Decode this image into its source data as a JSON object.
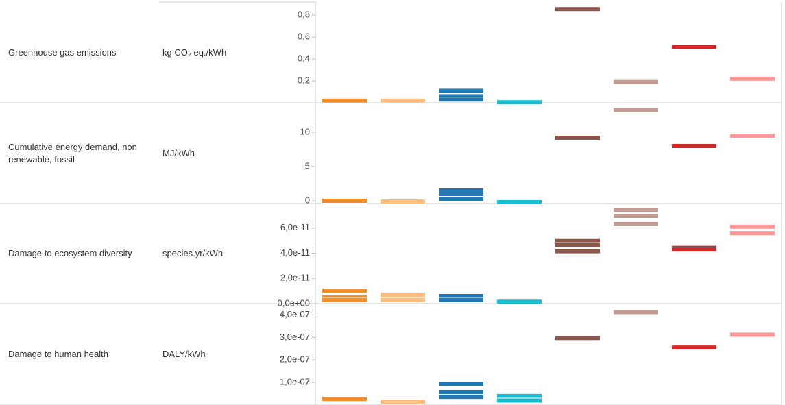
{
  "chart_data": [
    {
      "type": "strip",
      "label": "Greenhouse gas emissions",
      "unit": "kg CO₂ eq./kWh",
      "ylim": [
        0,
        0.92
      ],
      "yticks": [
        {
          "value": 0.2,
          "label": "0,2"
        },
        {
          "value": 0.4,
          "label": "0,4"
        },
        {
          "value": 0.6,
          "label": "0,6"
        },
        {
          "value": 0.8,
          "label": "0,8"
        }
      ],
      "series": [
        {
          "color": "#f28e2b",
          "values": [
            0.02
          ]
        },
        {
          "color": "#ffbe7d",
          "values": [
            0.02
          ]
        },
        {
          "color": "#1f77b4",
          "values": [
            0.11,
            0.06,
            0.03
          ]
        },
        {
          "color": "#17becf",
          "values": [
            0.005
          ]
        },
        {
          "color": "#8c564b",
          "values": [
            0.856
          ]
        },
        {
          "color": "#c49c94",
          "values": [
            0.19
          ]
        },
        {
          "color": "#d62728",
          "values": [
            0.51
          ]
        },
        {
          "color": "#ff9896",
          "values": [
            0.22
          ]
        }
      ]
    },
    {
      "type": "strip",
      "label": "Cumulative energy demand, non renewable, fossil",
      "unit": "MJ/kWh",
      "ylim": [
        -0.4,
        14.3
      ],
      "yticks": [
        0,
        5,
        10
      ],
      "series": [
        {
          "color": "#f28e2b",
          "values": [
            0.0
          ]
        },
        {
          "color": "#ffbe7d",
          "values": [
            -0.1
          ]
        },
        {
          "color": "#1f77b4",
          "values": [
            1.5,
            0.8,
            0.3
          ]
        },
        {
          "color": "#17becf",
          "values": [
            -0.2
          ]
        },
        {
          "color": "#8c564b",
          "values": [
            9.2
          ]
        },
        {
          "color": "#c49c94",
          "values": [
            13.2
          ]
        },
        {
          "color": "#d62728",
          "values": [
            8.0
          ]
        },
        {
          "color": "#ff9896",
          "values": [
            9.5
          ]
        }
      ]
    },
    {
      "type": "strip",
      "label": "Damage to ecosystem diversity",
      "unit": "species.yr/kWh",
      "ylim": [
        0,
        7.95e-11
      ],
      "yticks": [
        {
          "value": 0,
          "label": "0,0e+00"
        },
        {
          "value": 2e-11,
          "label": "2,0e-11"
        },
        {
          "value": 4e-11,
          "label": "4,0e-11"
        },
        {
          "value": 6e-11,
          "label": "6,0e-11"
        }
      ],
      "series": [
        {
          "color": "#f28e2b",
          "values": [
            1.03e-11,
            5e-12,
            3e-12
          ]
        },
        {
          "color": "#ffbe7d",
          "values": [
            7e-12,
            3e-12
          ]
        },
        {
          "color": "#1f77b4",
          "values": [
            6e-12,
            3e-12
          ]
        },
        {
          "color": "#17becf",
          "values": [
            1.5e-12
          ]
        },
        {
          "color": "#8c564b",
          "values": [
            4.97e-11,
            4.65e-11,
            4.16e-11
          ]
        },
        {
          "color": "#c49c94",
          "values": [
            7.46e-11,
            6.97e-11,
            6.32e-11
          ]
        },
        {
          "color": "#d62728",
          "values": [
            4.43e-11,
            4.3e-11
          ]
        },
        {
          "color": "#ff9896",
          "values": [
            6.11e-11,
            5.6e-11
          ]
        }
      ]
    },
    {
      "type": "strip",
      "label": "Damage to human health",
      "unit": "DALY/kWh",
      "ylim": [
        0,
        4.5e-07
      ],
      "yticks": [
        {
          "value": 1e-07,
          "label": "1,0e-07"
        },
        {
          "value": 2e-07,
          "label": "2,0e-07"
        },
        {
          "value": 3e-07,
          "label": "3,0e-07"
        },
        {
          "value": 4e-07,
          "label": "4,0e-07"
        }
      ],
      "series": [
        {
          "color": "#f28e2b",
          "values": [
            2.7e-08
          ]
        },
        {
          "color": "#ffbe7d",
          "values": [
            1.5e-08
          ]
        },
        {
          "color": "#1f77b4",
          "values": [
            9.4e-08,
            5.8e-08,
            3.6e-08
          ]
        },
        {
          "color": "#17becf",
          "values": [
            4e-08,
            2e-08
          ]
        },
        {
          "color": "#8c564b",
          "values": [
            2.97e-07
          ]
        },
        {
          "color": "#c49c94",
          "values": [
            4.12e-07
          ]
        },
        {
          "color": "#d62728",
          "values": [
            2.55e-07
          ]
        },
        {
          "color": "#ff9896",
          "values": [
            3.12e-07
          ]
        }
      ]
    }
  ]
}
